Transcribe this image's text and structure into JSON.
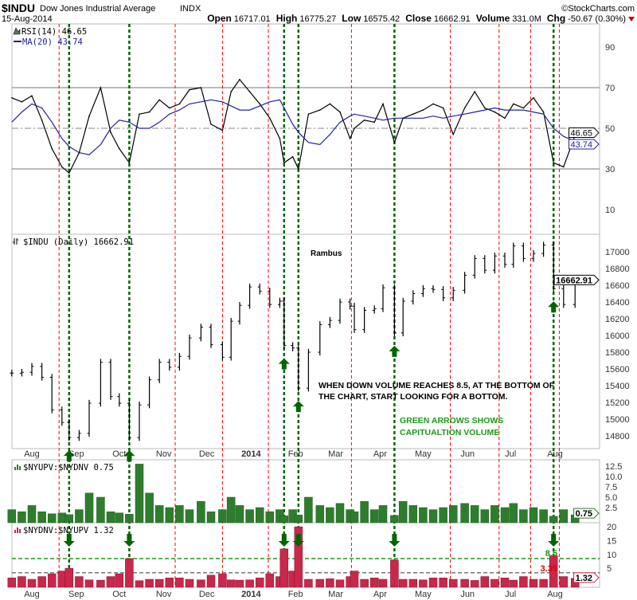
{
  "header": {
    "symbol": "$INDU",
    "name": "Dow Jones Industrial Average",
    "exchange": "INDX",
    "date": "15-Aug-2014",
    "copyright": "©StockCharts.com",
    "open_label": "Open",
    "open": "16717.01",
    "high_label": "High",
    "high": "16775.27",
    "low_label": "Low",
    "low": "16575.42",
    "close_label": "Close",
    "close": "16662.91",
    "volume_label": "Volume",
    "volume": "331.0M",
    "chg_label": "Chg",
    "chg": "-50.67 (0.30%)",
    "chg_icon": "down-triangle-icon"
  },
  "annotations": {
    "author": "Rambus",
    "note_line1": "WHEN DOWN VOLUME REACHES 8.5, AT THE BOTTOM OF",
    "note_line2": "THE CHART, START LOOKING FOR A BOTTOM.",
    "green_line1": "GREEN ARROWS SHOWS",
    "green_line2": "CAPITUALTION VOLUME",
    "red_lines": [
      "2013-08-20",
      "2013-11-09",
      "2013-12-12",
      "2014-01-13",
      "2014-03-12",
      "2014-04-11",
      "2014-05-20",
      "2014-06-23",
      "2014-07-15",
      "2014-08-04"
    ],
    "capitulation_dates": [
      "2013-08-27",
      "2013-10-08",
      "2014-01-24",
      "2014-02-03",
      "2014-04-11",
      "2014-07-31"
    ],
    "colors": {
      "red_line": "#ff0000",
      "green_line": "#006600",
      "arrow": "#006600",
      "rsi": "#000000",
      "ma": "#2020a0",
      "up_bars": "#2e7d2e",
      "down_bars": "#c8284a"
    }
  },
  "axis": {
    "months": [
      {
        "label": "Aug",
        "date": "2013-08-01"
      },
      {
        "label": "Sep",
        "date": "2013-09-01"
      },
      {
        "label": "Oct",
        "date": "2013-10-01"
      },
      {
        "label": "Nov",
        "date": "2013-11-01"
      },
      {
        "label": "Dec",
        "date": "2013-12-01"
      },
      {
        "label": "2014",
        "date": "2014-01-01"
      },
      {
        "label": "Feb",
        "date": "2014-02-01"
      },
      {
        "label": "Mar",
        "date": "2014-03-01"
      },
      {
        "label": "Apr",
        "date": "2014-04-01"
      },
      {
        "label": "May",
        "date": "2014-05-01"
      },
      {
        "label": "Jun",
        "date": "2014-06-01"
      },
      {
        "label": "Jul",
        "date": "2014-07-01"
      },
      {
        "label": "Aug",
        "date": "2014-08-01"
      }
    ]
  },
  "chart_data": {
    "type": "ohlc",
    "x": [
      "2013-07-18",
      "2013-07-25",
      "2013-08-01",
      "2013-08-08",
      "2013-08-15",
      "2013-08-22",
      "2013-08-27",
      "2013-09-03",
      "2013-09-10",
      "2013-09-18",
      "2013-09-25",
      "2013-10-01",
      "2013-10-08",
      "2013-10-15",
      "2013-10-22",
      "2013-10-29",
      "2013-11-05",
      "2013-11-12",
      "2013-11-19",
      "2013-11-27",
      "2013-12-04",
      "2013-12-12",
      "2013-12-18",
      "2013-12-24",
      "2013-12-31",
      "2014-01-07",
      "2014-01-14",
      "2014-01-21",
      "2014-01-24",
      "2014-01-30",
      "2014-02-03",
      "2014-02-10",
      "2014-02-18",
      "2014-02-25",
      "2014-03-04",
      "2014-03-11",
      "2014-03-14",
      "2014-03-21",
      "2014-03-28",
      "2014-04-03",
      "2014-04-11",
      "2014-04-17",
      "2014-04-24",
      "2014-05-01",
      "2014-05-08",
      "2014-05-15",
      "2014-05-22",
      "2014-05-30",
      "2014-06-06",
      "2014-06-13",
      "2014-06-20",
      "2014-06-27",
      "2014-07-03",
      "2014-07-10",
      "2014-07-17",
      "2014-07-24",
      "2014-07-31",
      "2014-08-07",
      "2014-08-15"
    ],
    "panels": [
      {
        "type": "line",
        "legend": "RSI(14) 46.65",
        "ma_legend": "MA(20) 43.74",
        "yticks": [
          "10",
          "30",
          "50",
          "70",
          "90"
        ],
        "ylim": [
          0,
          100
        ],
        "reference_lines": [
          30,
          50,
          70
        ],
        "last_rsi": "46.65",
        "last_ma": "43.74",
        "series": [
          {
            "name": "RSI(14)",
            "values": [
              65,
              63,
              66,
              54,
              40,
              31,
              28,
              38,
              56,
              70,
              48,
              40,
              33,
              57,
              58,
              64,
              60,
              62,
              69,
              70,
              52,
              49,
              68,
              74,
              68,
              62,
              55,
              45,
              33,
              36,
              30,
              57,
              59,
              62,
              58,
              45,
              50,
              54,
              53,
              62,
              43,
              55,
              57,
              59,
              62,
              60,
              47,
              60,
              68,
              60,
              58,
              55,
              62,
              60,
              65,
              58,
              33,
              31,
              46.65
            ]
          },
          {
            "name": "MA(20)",
            "values": [
              53,
              58,
              62,
              60,
              53,
              45,
              41,
              38,
              37,
              42,
              50,
              54,
              53,
              50,
              50,
              53,
              57,
              59,
              62,
              63,
              64,
              63,
              61,
              59,
              59,
              61,
              63,
              64,
              60,
              52,
              48,
              43,
              42,
              47,
              53,
              56,
              57,
              56,
              55,
              54,
              55,
              55,
              55,
              55,
              56,
              55,
              56,
              57,
              58,
              59,
              60,
              59,
              59,
              59,
              58,
              57,
              50,
              46,
              43.74
            ]
          }
        ]
      },
      {
        "type": "ohlc",
        "legend": "$INDU (Daily) 16662.91",
        "yticks": [
          "14800",
          "15000",
          "15200",
          "15400",
          "15600",
          "15800",
          "16000",
          "16200",
          "16400",
          "16600",
          "16800",
          "17000"
        ],
        "last": "16662.91",
        "close": [
          15550,
          15560,
          15630,
          15500,
          15110,
          14960,
          14780,
          14830,
          15190,
          15680,
          15270,
          15190,
          14780,
          15170,
          15470,
          15680,
          15620,
          15750,
          15970,
          16100,
          15890,
          15740,
          16170,
          16360,
          16580,
          16530,
          16370,
          16410,
          15880,
          15850,
          15370,
          15800,
          16130,
          16180,
          16400,
          16350,
          16070,
          16300,
          16320,
          16570,
          16030,
          16410,
          16500,
          16560,
          16550,
          16450,
          16540,
          16720,
          16920,
          16780,
          16950,
          16850,
          17070,
          16920,
          16980,
          17080,
          16560,
          16370,
          16662.91
        ]
      },
      {
        "type": "bar",
        "legend": "$NYUPV:$NYDNV 0.75",
        "yticks": [
          "2.5",
          "5.0",
          "7.5",
          "10.0",
          "12.5"
        ],
        "last": "0.75",
        "values": [
          2,
          1.5,
          3,
          1.5,
          1,
          1.2,
          0.8,
          2,
          6,
          5,
          1.5,
          1.2,
          0.9,
          13,
          6,
          3,
          2.5,
          3,
          2,
          4,
          1.5,
          2,
          5,
          3,
          2,
          2.5,
          1.5,
          2,
          0.5,
          2,
          0.7,
          5,
          3,
          2.5,
          3.5,
          2,
          1.5,
          4,
          2,
          3,
          0.6,
          4,
          3,
          2.5,
          2,
          2.5,
          3,
          3.5,
          3,
          2,
          3,
          2.5,
          3.5,
          2,
          2.5,
          2,
          0.4,
          2,
          0.75
        ]
      },
      {
        "type": "bar",
        "legend": "$NYDNV:$NYUPV 1.32",
        "yticks": [
          "5",
          "10",
          "15",
          "20"
        ],
        "last": "1.32",
        "threshold_high": "8.5",
        "threshold_low": "3.35",
        "values": [
          1.5,
          2,
          1,
          2,
          3,
          4,
          5,
          2,
          0.8,
          0.7,
          2,
          3,
          8.5,
          0.5,
          1,
          1,
          1.5,
          1.5,
          1,
          0.8,
          2.5,
          3,
          0.8,
          0.7,
          0.8,
          1.5,
          3,
          2,
          12,
          4,
          20,
          1,
          1,
          1.2,
          0.8,
          2,
          4,
          1,
          1.5,
          1,
          8,
          1,
          1,
          0.8,
          1.5,
          1.5,
          1,
          1,
          0.6,
          2,
          1,
          1.5,
          0.7,
          2,
          1,
          1,
          9.5,
          2,
          1.32
        ]
      }
    ]
  }
}
